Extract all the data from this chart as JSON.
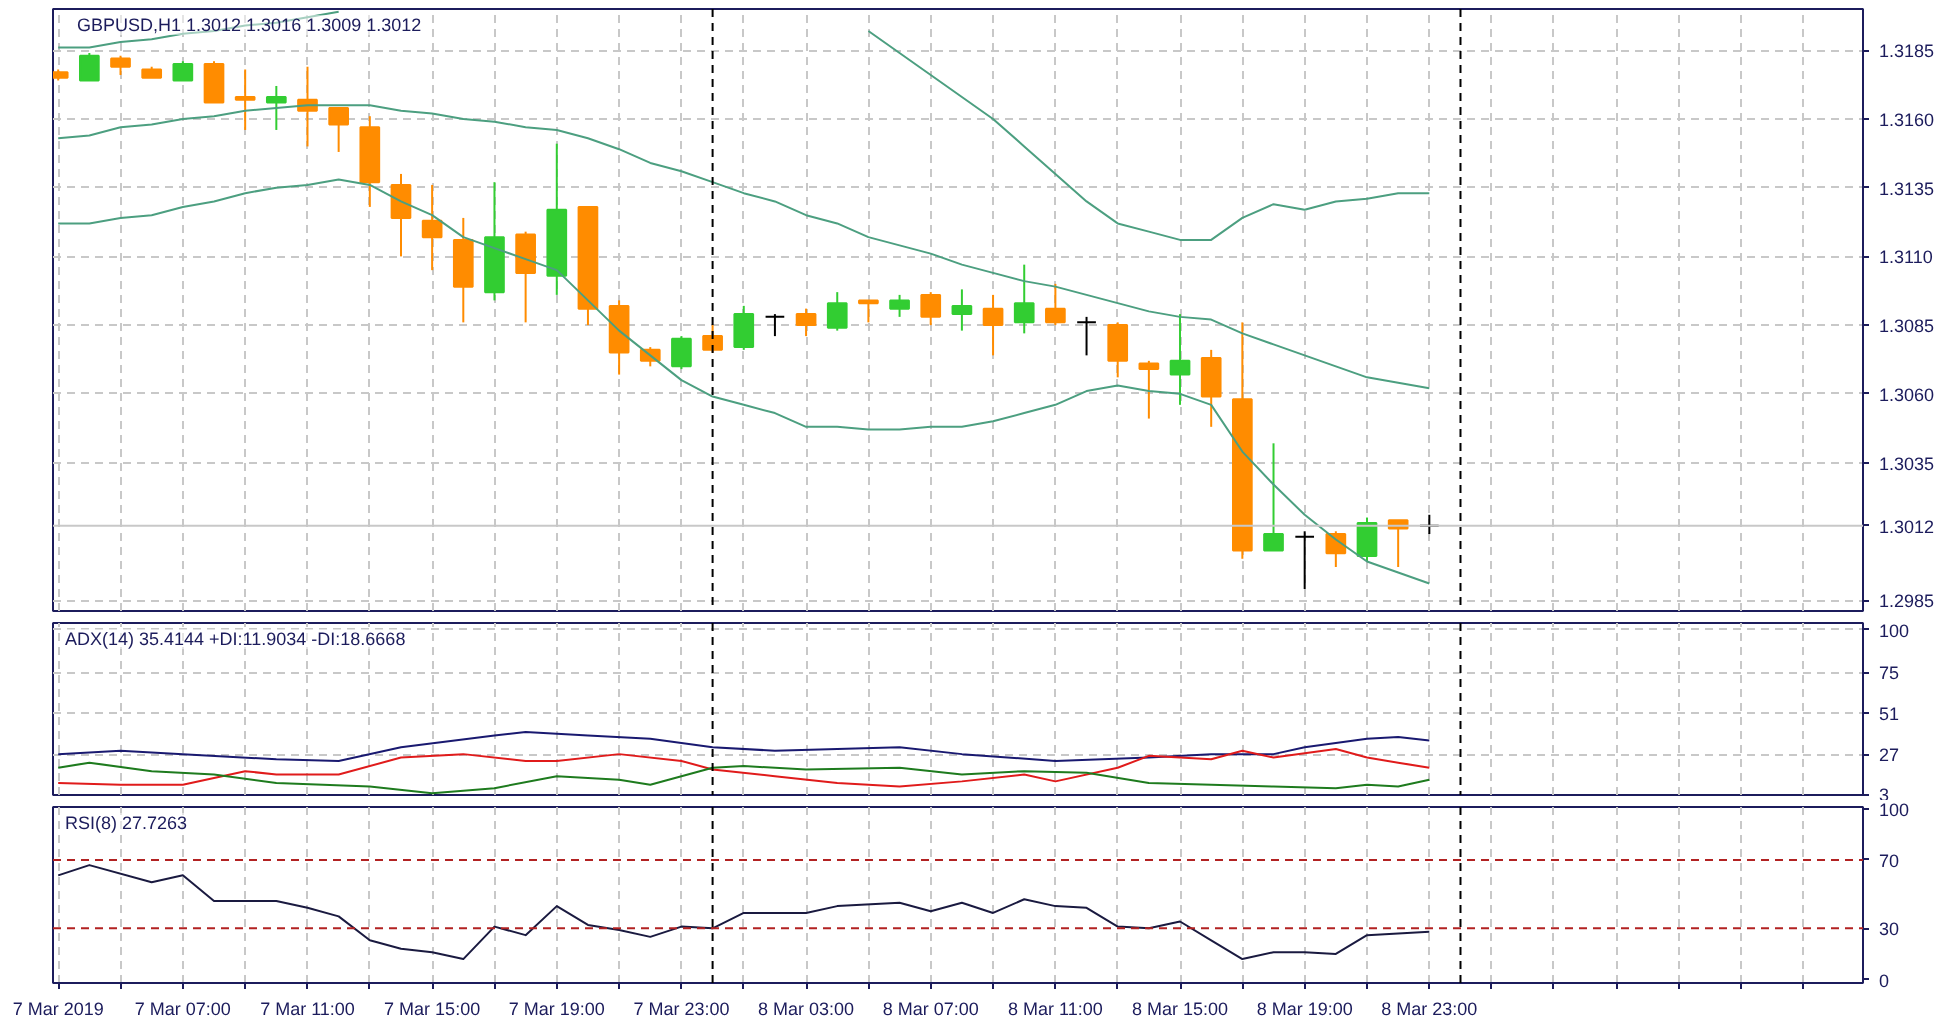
{
  "chart_data": [
    {
      "type": "candlestick",
      "title": "GBPUSD,H1  1.3012 1.3016 1.3009 1.3012",
      "x": [
        "2019-03-07T03:00",
        "2019-03-07T04:00",
        "2019-03-07T05:00",
        "2019-03-07T06:00",
        "2019-03-07T07:00",
        "2019-03-07T08:00",
        "2019-03-07T09:00",
        "2019-03-07T10:00",
        "2019-03-07T11:00",
        "2019-03-07T12:00",
        "2019-03-07T13:00",
        "2019-03-07T14:00",
        "2019-03-07T15:00",
        "2019-03-07T16:00",
        "2019-03-07T17:00",
        "2019-03-07T18:00",
        "2019-03-07T19:00",
        "2019-03-07T20:00",
        "2019-03-07T21:00",
        "2019-03-07T22:00",
        "2019-03-07T23:00",
        "2019-03-08T00:00",
        "2019-03-08T01:00",
        "2019-03-08T02:00",
        "2019-03-08T03:00",
        "2019-03-08T04:00",
        "2019-03-08T05:00",
        "2019-03-08T06:00",
        "2019-03-08T07:00",
        "2019-03-08T08:00",
        "2019-03-08T09:00",
        "2019-03-08T10:00",
        "2019-03-08T11:00",
        "2019-03-08T12:00",
        "2019-03-08T13:00",
        "2019-03-08T14:00",
        "2019-03-08T15:00",
        "2019-03-08T16:00",
        "2019-03-08T17:00",
        "2019-03-08T18:00",
        "2019-03-08T19:00",
        "2019-03-08T20:00",
        "2019-03-08T21:00",
        "2019-03-08T22:00",
        "2019-03-08T23:00"
      ],
      "ohlc": [
        [
          1.3177,
          1.3178,
          1.3174,
          1.3175
        ],
        [
          1.3174,
          1.3184,
          1.3174,
          1.3183
        ],
        [
          1.3182,
          1.3183,
          1.3176,
          1.3179
        ],
        [
          1.3178,
          1.3179,
          1.3175,
          1.3175
        ],
        [
          1.3174,
          1.3181,
          1.3174,
          1.318
        ],
        [
          1.318,
          1.3181,
          1.3166,
          1.3166
        ],
        [
          1.3168,
          1.3178,
          1.3156,
          1.3167
        ],
        [
          1.3166,
          1.3172,
          1.3156,
          1.3168
        ],
        [
          1.3167,
          1.3179,
          1.315,
          1.3163
        ],
        [
          1.3164,
          1.3164,
          1.3148,
          1.3158
        ],
        [
          1.3157,
          1.3161,
          1.3128,
          1.3137
        ],
        [
          1.3136,
          1.314,
          1.311,
          1.3124
        ],
        [
          1.3123,
          1.3136,
          1.3105,
          1.3117
        ],
        [
          1.3116,
          1.3124,
          1.3086,
          1.3099
        ],
        [
          1.3097,
          1.3137,
          1.3094,
          1.3117
        ],
        [
          1.3118,
          1.3119,
          1.3086,
          1.3104
        ],
        [
          1.3103,
          1.3151,
          1.3096,
          1.3127
        ],
        [
          1.3128,
          1.3128,
          1.3085,
          1.3091
        ],
        [
          1.3092,
          1.3094,
          1.3067,
          1.3075
        ],
        [
          1.3076,
          1.3077,
          1.307,
          1.3072
        ],
        [
          1.307,
          1.3081,
          1.3069,
          1.308
        ],
        [
          1.3081,
          1.3085,
          1.3075,
          1.3076
        ],
        [
          1.3077,
          1.3092,
          1.3076,
          1.3089
        ],
        [
          1.3088,
          1.3089,
          1.3081,
          1.3088
        ],
        [
          1.3089,
          1.3091,
          1.3081,
          1.3085
        ],
        [
          1.3084,
          1.3097,
          1.3083,
          1.3093
        ],
        [
          1.3094,
          1.3094,
          1.3086,
          1.3093
        ],
        [
          1.3091,
          1.3096,
          1.3088,
          1.3094
        ],
        [
          1.3096,
          1.3097,
          1.3085,
          1.3088
        ],
        [
          1.3089,
          1.3098,
          1.3083,
          1.3092
        ],
        [
          1.3091,
          1.3096,
          1.3074,
          1.3085
        ],
        [
          1.3086,
          1.3107,
          1.3082,
          1.3093
        ],
        [
          1.3091,
          1.31,
          1.3085,
          1.3086
        ],
        [
          1.3086,
          1.3088,
          1.3074,
          1.3086
        ],
        [
          1.3085,
          1.3086,
          1.3066,
          1.3072
        ],
        [
          1.3071,
          1.3072,
          1.3051,
          1.3069
        ],
        [
          1.3067,
          1.3089,
          1.3056,
          1.3072
        ],
        [
          1.3073,
          1.3076,
          1.3048,
          1.3059
        ],
        [
          1.3058,
          1.3086,
          1.3,
          1.3003
        ],
        [
          1.3003,
          1.3042,
          1.3003,
          1.3009
        ],
        [
          1.3008,
          1.301,
          1.2989,
          1.3008
        ],
        [
          1.3009,
          1.301,
          1.2997,
          1.3002
        ],
        [
          1.3001,
          1.3015,
          1.2999,
          1.3013
        ],
        [
          1.3014,
          1.3014,
          1.2997,
          1.3011
        ],
        [
          1.3012,
          1.3016,
          1.3009,
          1.3012
        ]
      ],
      "colors": [
        "#ff8c00",
        "#32cd32",
        "#ff8c00",
        "#ff8c00",
        "#32cd32",
        "#ff8c00",
        "#ff8c00",
        "#32cd32",
        "#ff8c00",
        "#ff8c00",
        "#ff8c00",
        "#ff8c00",
        "#ff8c00",
        "#ff8c00",
        "#32cd32",
        "#ff8c00",
        "#32cd32",
        "#ff8c00",
        "#ff8c00",
        "#ff8c00",
        "#32cd32",
        "#ff8c00",
        "#32cd32",
        "#000000",
        "#ff8c00",
        "#32cd32",
        "#ff8c00",
        "#32cd32",
        "#ff8c00",
        "#32cd32",
        "#ff8c00",
        "#32cd32",
        "#ff8c00",
        "#000000",
        "#ff8c00",
        "#ff8c00",
        "#32cd32",
        "#ff8c00",
        "#ff8c00",
        "#32cd32",
        "#000000",
        "#ff8c00",
        "#32cd32",
        "#ff8c00",
        "#000000"
      ],
      "series": [
        {
          "type": "line",
          "color": "#4c9f80",
          "values": [
            1.3186,
            1.3186,
            1.3188,
            1.3189,
            1.3191,
            1.3192,
            1.3194,
            1.3195,
            1.3197,
            1.3199,
            null,
            null,
            null,
            null,
            null,
            null,
            null,
            null,
            null,
            null,
            null,
            null,
            null,
            null,
            null,
            null,
            1.3192,
            1.3184,
            1.3176,
            1.3168,
            1.316,
            1.315,
            1.314,
            1.313,
            1.3122,
            1.3119,
            1.3116,
            1.3116,
            1.3124,
            1.3129,
            1.3127,
            1.313,
            1.3131,
            1.3133,
            1.3133
          ]
        },
        {
          "type": "line",
          "color": "#4c9f80",
          "values": [
            1.3153,
            1.3154,
            1.3157,
            1.3158,
            1.316,
            1.3161,
            1.3163,
            1.3164,
            1.3165,
            1.3165,
            1.3165,
            1.3163,
            1.3162,
            1.316,
            1.3159,
            1.3157,
            1.3156,
            1.3153,
            1.3149,
            1.3144,
            1.3141,
            1.3137,
            1.3133,
            1.313,
            1.3125,
            1.3122,
            1.3117,
            1.3114,
            1.3111,
            1.3107,
            1.3104,
            1.3101,
            1.3099,
            1.3096,
            1.3093,
            1.309,
            1.3088,
            1.3087,
            1.3082,
            1.3078,
            1.3074,
            1.307,
            1.3066,
            1.3064,
            1.3062
          ]
        },
        {
          "type": "line",
          "color": "#4c9f80",
          "values": [
            1.3122,
            1.3122,
            1.3124,
            1.3125,
            1.3128,
            1.313,
            1.3133,
            1.3135,
            1.3136,
            1.3138,
            1.3136,
            1.313,
            1.3125,
            1.3117,
            1.3113,
            1.3109,
            1.3105,
            1.3094,
            1.3083,
            1.3074,
            1.3065,
            1.3059,
            1.3056,
            1.3053,
            1.3048,
            1.3048,
            1.3047,
            1.3047,
            1.3048,
            1.3048,
            1.305,
            1.3053,
            1.3056,
            1.3061,
            1.3063,
            1.3061,
            1.306,
            1.3056,
            1.3039,
            1.3027,
            1.3016,
            1.3007,
            1.2999,
            1.2995,
            1.2991
          ]
        }
      ],
      "xlim": [
        "2019-03-07T02:50",
        "2019-03-09T12:55"
      ],
      "ylim": [
        1.2981,
        1.32
      ],
      "xticks": [
        {
          "value": "2019-03-07T03:00",
          "label": null
        },
        {
          "value": "2019-03-07T05:00",
          "label": null
        },
        {
          "value": "2019-03-07T07:00",
          "label": null
        },
        {
          "value": "2019-03-07T09:00",
          "label": null
        },
        {
          "value": "2019-03-07T11:00",
          "label": null
        },
        {
          "value": "2019-03-07T13:00",
          "label": null
        },
        {
          "value": "2019-03-07T15:00",
          "label": null
        },
        {
          "value": "2019-03-07T17:00",
          "label": null
        },
        {
          "value": "2019-03-07T19:00",
          "label": null
        },
        {
          "value": "2019-03-07T21:00",
          "label": null
        },
        {
          "value": "2019-03-07T23:00",
          "label": null
        },
        {
          "value": "2019-03-08T01:00",
          "label": null
        },
        {
          "value": "2019-03-08T03:00",
          "label": null
        },
        {
          "value": "2019-03-08T05:00",
          "label": null
        },
        {
          "value": "2019-03-08T07:00",
          "label": null
        },
        {
          "value": "2019-03-08T09:00",
          "label": null
        },
        {
          "value": "2019-03-08T11:00",
          "label": null
        },
        {
          "value": "2019-03-08T13:00",
          "label": null
        },
        {
          "value": "2019-03-08T15:00",
          "label": null
        },
        {
          "value": "2019-03-08T17:00",
          "label": null
        },
        {
          "value": "2019-03-08T19:00",
          "label": null
        },
        {
          "value": "2019-03-08T21:00",
          "label": null
        },
        {
          "value": "2019-03-08T23:00",
          "label": null
        },
        {
          "value": "2019-03-09T01:00",
          "label": null
        },
        {
          "value": "2019-03-09T03:00",
          "label": null
        },
        {
          "value": "2019-03-09T05:00",
          "label": null
        },
        {
          "value": "2019-03-09T07:00",
          "label": null
        },
        {
          "value": "2019-03-09T09:00",
          "label": null
        },
        {
          "value": "2019-03-09T11:00",
          "label": null
        }
      ],
      "yticks": [
        {
          "value": 1.3185,
          "label": "1.3185"
        },
        {
          "value": 1.316,
          "label": "1.3160"
        },
        {
          "value": 1.3135,
          "label": "1.3135"
        },
        {
          "value": 1.311,
          "label": "1.3110"
        },
        {
          "value": 1.3085,
          "label": "1.3085"
        },
        {
          "value": 1.306,
          "label": "1.3060"
        },
        {
          "value": 1.3035,
          "label": "1.3035"
        },
        {
          "value": 1.2985,
          "label": "1.2985"
        }
      ],
      "grid": true,
      "tick_labels": "y",
      "ref_lines": [
        {
          "axis": "x",
          "value": "2019-03-08T00:00",
          "label": null,
          "color": "#000000",
          "line_style": "dashed"
        },
        {
          "axis": "x",
          "value": "2019-03-09T00:00",
          "label": null,
          "color": "#000000",
          "line_style": "dashed"
        },
        {
          "axis": "y",
          "value": 1.3012,
          "label": "1.3012",
          "color": "#c8c8c8",
          "line_style": "solid"
        }
      ]
    },
    {
      "type": "line",
      "title": "ADX(14) 35.4144 +DI:11.9034 -DI:18.6668",
      "series": [
        {
          "color": "#191970",
          "x": [
            "2019-03-07T03:00",
            "2019-03-07T05:00",
            "2019-03-07T07:00",
            "2019-03-07T10:00",
            "2019-03-07T12:00",
            "2019-03-07T14:00",
            "2019-03-07T17:00",
            "2019-03-07T18:00",
            "2019-03-07T20:00",
            "2019-03-07T22:00",
            "2019-03-08T00:00",
            "2019-03-08T02:00",
            "2019-03-08T06:00",
            "2019-03-08T08:00",
            "2019-03-08T11:00",
            "2019-03-08T14:00",
            "2019-03-08T16:00",
            "2019-03-08T18:00",
            "2019-03-08T19:00",
            "2019-03-08T21:00",
            "2019-03-08T22:00",
            "2019-03-08T23:00"
          ],
          "values": [
            27,
            29,
            27,
            24,
            23,
            31,
            38,
            40,
            38,
            36,
            31,
            29,
            31,
            27,
            23,
            25,
            27,
            27,
            31,
            36,
            37,
            35
          ]
        },
        {
          "color": "#e01b1b",
          "x": [
            "2019-03-07T03:00",
            "2019-03-07T05:00",
            "2019-03-07T07:00",
            "2019-03-07T09:00",
            "2019-03-07T10:00",
            "2019-03-07T12:00",
            "2019-03-07T14:00",
            "2019-03-07T16:00",
            "2019-03-07T18:00",
            "2019-03-07T19:00",
            "2019-03-07T21:00",
            "2019-03-07T23:00",
            "2019-03-08T00:00",
            "2019-03-08T02:00",
            "2019-03-08T04:00",
            "2019-03-08T06:00",
            "2019-03-08T08:00",
            "2019-03-08T10:00",
            "2019-03-08T11:00",
            "2019-03-08T13:00",
            "2019-03-08T14:00",
            "2019-03-08T16:00",
            "2019-03-08T17:00",
            "2019-03-08T18:00",
            "2019-03-08T20:00",
            "2019-03-08T21:00",
            "2019-03-08T22:00",
            "2019-03-08T23:00"
          ],
          "values": [
            10,
            9,
            9,
            17,
            15,
            15,
            25,
            27,
            23,
            23,
            27,
            23,
            18,
            14,
            10,
            8,
            11,
            15,
            11,
            19,
            26,
            24,
            29,
            25,
            30,
            25,
            22,
            19
          ]
        },
        {
          "color": "#1e7b1e",
          "x": [
            "2019-03-07T03:00",
            "2019-03-07T04:00",
            "2019-03-07T06:00",
            "2019-03-07T08:00",
            "2019-03-07T10:00",
            "2019-03-07T13:00",
            "2019-03-07T15:00",
            "2019-03-07T17:00",
            "2019-03-07T19:00",
            "2019-03-07T21:00",
            "2019-03-07T22:00",
            "2019-03-08T00:00",
            "2019-03-08T01:00",
            "2019-03-08T03:00",
            "2019-03-08T06:00",
            "2019-03-08T08:00",
            "2019-03-08T10:00",
            "2019-03-08T12:00",
            "2019-03-08T14:00",
            "2019-03-08T16:00",
            "2019-03-08T18:00",
            "2019-03-08T20:00",
            "2019-03-08T21:00",
            "2019-03-08T22:00",
            "2019-03-08T23:00"
          ],
          "values": [
            19,
            22,
            17,
            15,
            10,
            8,
            4,
            7,
            14,
            12,
            9,
            19,
            20,
            18,
            19,
            15,
            17,
            16,
            10,
            9,
            8,
            7,
            9,
            8,
            12
          ]
        }
      ],
      "xlim": [
        "2019-03-07T02:50",
        "2019-03-09T12:55"
      ],
      "ylim": [
        3,
        104
      ],
      "xticks": [
        {
          "value": "2019-03-07T03:00",
          "label": null
        },
        {
          "value": "2019-03-07T05:00",
          "label": null
        },
        {
          "value": "2019-03-07T07:00",
          "label": null
        },
        {
          "value": "2019-03-07T09:00",
          "label": null
        },
        {
          "value": "2019-03-07T11:00",
          "label": null
        },
        {
          "value": "2019-03-07T13:00",
          "label": null
        },
        {
          "value": "2019-03-07T15:00",
          "label": null
        },
        {
          "value": "2019-03-07T17:00",
          "label": null
        },
        {
          "value": "2019-03-07T19:00",
          "label": null
        },
        {
          "value": "2019-03-07T21:00",
          "label": null
        },
        {
          "value": "2019-03-07T23:00",
          "label": null
        },
        {
          "value": "2019-03-08T01:00",
          "label": null
        },
        {
          "value": "2019-03-08T03:00",
          "label": null
        },
        {
          "value": "2019-03-08T05:00",
          "label": null
        },
        {
          "value": "2019-03-08T07:00",
          "label": null
        },
        {
          "value": "2019-03-08T09:00",
          "label": null
        },
        {
          "value": "2019-03-08T11:00",
          "label": null
        },
        {
          "value": "2019-03-08T13:00",
          "label": null
        },
        {
          "value": "2019-03-08T15:00",
          "label": null
        },
        {
          "value": "2019-03-08T17:00",
          "label": null
        },
        {
          "value": "2019-03-08T19:00",
          "label": null
        },
        {
          "value": "2019-03-08T21:00",
          "label": null
        },
        {
          "value": "2019-03-08T23:00",
          "label": null
        },
        {
          "value": "2019-03-09T01:00",
          "label": null
        },
        {
          "value": "2019-03-09T03:00",
          "label": null
        },
        {
          "value": "2019-03-09T05:00",
          "label": null
        },
        {
          "value": "2019-03-09T07:00",
          "label": null
        },
        {
          "value": "2019-03-09T09:00",
          "label": null
        },
        {
          "value": "2019-03-09T11:00",
          "label": null
        }
      ],
      "yticks": [
        100,
        75,
        51,
        27,
        3
      ],
      "grid": true,
      "tick_labels": "y",
      "ref_lines": [
        {
          "axis": "x",
          "value": "2019-03-08T00:00",
          "label": null,
          "color": "#000000",
          "line_style": "dashed"
        },
        {
          "axis": "x",
          "value": "2019-03-09T00:00",
          "label": null,
          "color": "#000000",
          "line_style": "dashed"
        }
      ]
    },
    {
      "type": "line",
      "title": "RSI(8) 27.7263",
      "series": [
        {
          "color": "#1a1a40",
          "x": [
            "2019-03-07T03:00",
            "2019-03-07T04:00",
            "2019-03-07T06:00",
            "2019-03-07T07:00",
            "2019-03-07T08:00",
            "2019-03-07T10:00",
            "2019-03-07T11:00",
            "2019-03-07T12:00",
            "2019-03-07T13:00",
            "2019-03-07T14:00",
            "2019-03-07T15:00",
            "2019-03-07T16:00",
            "2019-03-07T17:00",
            "2019-03-07T18:00",
            "2019-03-07T19:00",
            "2019-03-07T20:00",
            "2019-03-07T21:00",
            "2019-03-07T22:00",
            "2019-03-07T23:00",
            "2019-03-08T00:00",
            "2019-03-08T01:00",
            "2019-03-08T03:00",
            "2019-03-08T04:00",
            "2019-03-08T06:00",
            "2019-03-08T07:00",
            "2019-03-08T08:00",
            "2019-03-08T09:00",
            "2019-03-08T10:00",
            "2019-03-08T11:00",
            "2019-03-08T12:00",
            "2019-03-08T13:00",
            "2019-03-08T14:00",
            "2019-03-08T15:00",
            "2019-03-08T16:00",
            "2019-03-08T17:00",
            "2019-03-08T18:00",
            "2019-03-08T19:00",
            "2019-03-08T20:00",
            "2019-03-08T21:00",
            "2019-03-08T23:00"
          ],
          "values": [
            61,
            67,
            57,
            61,
            46,
            46,
            42,
            37,
            23,
            18,
            16,
            12,
            31,
            26,
            43,
            32,
            29,
            25,
            31,
            30,
            39,
            39,
            43,
            45,
            40,
            45,
            39,
            47,
            43,
            42,
            31,
            30,
            34,
            23,
            12,
            16,
            16,
            15,
            26,
            28
          ]
        }
      ],
      "xlim": [
        "2019-03-07T02:50",
        "2019-03-09T12:55"
      ],
      "ylim": [
        -2,
        101
      ],
      "xticks": [
        {
          "value": "2019-03-07T03:00",
          "label": "7 Mar 2019"
        },
        {
          "value": "2019-03-07T05:00",
          "label": null
        },
        {
          "value": "2019-03-07T07:00",
          "label": "7 Mar 07:00"
        },
        {
          "value": "2019-03-07T09:00",
          "label": null
        },
        {
          "value": "2019-03-07T11:00",
          "label": "7 Mar 11:00"
        },
        {
          "value": "2019-03-07T13:00",
          "label": null
        },
        {
          "value": "2019-03-07T15:00",
          "label": "7 Mar 15:00"
        },
        {
          "value": "2019-03-07T17:00",
          "label": null
        },
        {
          "value": "2019-03-07T19:00",
          "label": "7 Mar 19:00"
        },
        {
          "value": "2019-03-07T21:00",
          "label": null
        },
        {
          "value": "2019-03-07T23:00",
          "label": "7 Mar 23:00"
        },
        {
          "value": "2019-03-08T01:00",
          "label": null
        },
        {
          "value": "2019-03-08T03:00",
          "label": "8 Mar 03:00"
        },
        {
          "value": "2019-03-08T05:00",
          "label": null
        },
        {
          "value": "2019-03-08T07:00",
          "label": "8 Mar 07:00"
        },
        {
          "value": "2019-03-08T09:00",
          "label": null
        },
        {
          "value": "2019-03-08T11:00",
          "label": "8 Mar 11:00"
        },
        {
          "value": "2019-03-08T13:00",
          "label": null
        },
        {
          "value": "2019-03-08T15:00",
          "label": "8 Mar 15:00"
        },
        {
          "value": "2019-03-08T17:00",
          "label": null
        },
        {
          "value": "2019-03-08T19:00",
          "label": "8 Mar 19:00"
        },
        {
          "value": "2019-03-08T21:00",
          "label": null
        },
        {
          "value": "2019-03-08T23:00",
          "label": "8 Mar 23:00"
        },
        {
          "value": "2019-03-09T01:00",
          "label": null
        },
        {
          "value": "2019-03-09T03:00",
          "label": null
        },
        {
          "value": "2019-03-09T05:00",
          "label": null
        },
        {
          "value": "2019-03-09T07:00",
          "label": null
        },
        {
          "value": "2019-03-09T09:00",
          "label": null
        },
        {
          "value": "2019-03-09T11:00",
          "label": null
        }
      ],
      "yticks": [
        100,
        70,
        30,
        0
      ],
      "grid": "x",
      "ref_lines": [
        {
          "axis": "y",
          "value": 70,
          "label": null,
          "color": "#b22222",
          "line_style": "dashed"
        },
        {
          "axis": "y",
          "value": 30,
          "label": null,
          "color": "#b22222",
          "line_style": "dashed"
        },
        {
          "axis": "x",
          "value": "2019-03-08T00:00",
          "label": null,
          "color": "#000000",
          "line_style": "dashed"
        },
        {
          "axis": "x",
          "value": "2019-03-09T00:00",
          "label": null,
          "color": "#000000",
          "line_style": "dashed"
        }
      ]
    }
  ]
}
